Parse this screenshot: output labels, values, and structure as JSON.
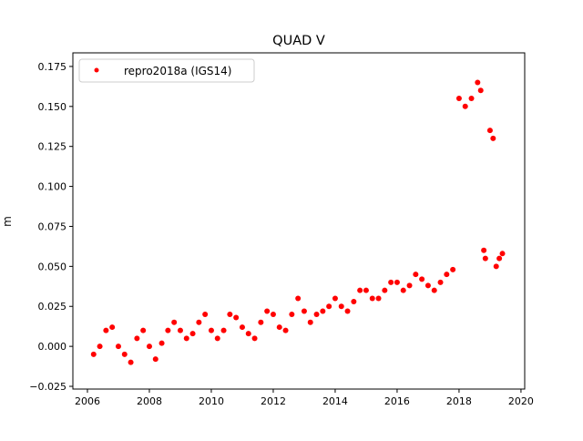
{
  "chart_data": {
    "type": "scatter",
    "title": "QUAD V",
    "xlabel": "",
    "ylabel": "m",
    "xlim": [
      2005.53,
      2020.12
    ],
    "ylim": [
      -0.0267,
      0.1835
    ],
    "xticks": [
      2006,
      2008,
      2010,
      2012,
      2014,
      2016,
      2018,
      2020
    ],
    "xtick_labels": [
      "2006",
      "2008",
      "2010",
      "2012",
      "2014",
      "2016",
      "2018",
      "2020"
    ],
    "yticks": [
      -0.025,
      0,
      0.025,
      0.05,
      0.075,
      0.1,
      0.125,
      0.15,
      0.175
    ],
    "ytick_labels": [
      "−0.025",
      "0.000",
      "0.025",
      "0.050",
      "0.075",
      "0.100",
      "0.125",
      "0.150",
      "0.175"
    ],
    "grid": false,
    "legend": {
      "position": "top-left",
      "entries": [
        "repro2018a (IGS14)"
      ]
    },
    "series": [
      {
        "name": "repro2018a (IGS14)",
        "color": "#ff0000",
        "marker": "circle",
        "x": [
          2006.2,
          2006.4,
          2006.6,
          2006.8,
          2007.0,
          2007.2,
          2007.4,
          2007.6,
          2007.8,
          2008.0,
          2008.2,
          2008.4,
          2008.6,
          2008.8,
          2009.0,
          2009.2,
          2009.4,
          2009.6,
          2009.8,
          2010.0,
          2010.2,
          2010.4,
          2010.6,
          2010.8,
          2011.0,
          2011.2,
          2011.4,
          2011.6,
          2011.8,
          2012.0,
          2012.2,
          2012.4,
          2012.6,
          2012.8,
          2013.0,
          2013.2,
          2013.4,
          2013.6,
          2013.8,
          2014.0,
          2014.2,
          2014.4,
          2014.6,
          2014.8,
          2015.0,
          2015.2,
          2015.4,
          2015.6,
          2015.8,
          2016.0,
          2016.2,
          2016.4,
          2016.6,
          2016.8,
          2017.0,
          2017.2,
          2017.4,
          2017.6,
          2017.8,
          2018.0,
          2018.2,
          2018.4,
          2018.6,
          2018.7,
          2018.8,
          2018.85,
          2019.0,
          2019.1,
          2019.2,
          2019.3,
          2019.4
        ],
        "y": [
          -0.005,
          0.0,
          0.01,
          0.012,
          0.0,
          -0.005,
          -0.01,
          0.005,
          0.01,
          0.0,
          -0.008,
          0.002,
          0.01,
          0.015,
          0.01,
          0.005,
          0.008,
          0.015,
          0.02,
          0.01,
          0.005,
          0.01,
          0.02,
          0.018,
          0.012,
          0.008,
          0.005,
          0.015,
          0.022,
          0.02,
          0.012,
          0.01,
          0.02,
          0.03,
          0.022,
          0.015,
          0.02,
          0.022,
          0.025,
          0.03,
          0.025,
          0.022,
          0.028,
          0.035,
          0.035,
          0.03,
          0.03,
          0.035,
          0.04,
          0.04,
          0.035,
          0.038,
          0.045,
          0.042,
          0.038,
          0.035,
          0.04,
          0.045,
          0.048,
          0.155,
          0.15,
          0.155,
          0.165,
          0.16,
          0.06,
          0.055,
          0.135,
          0.13,
          0.05,
          0.055,
          0.058
        ]
      }
    ]
  }
}
